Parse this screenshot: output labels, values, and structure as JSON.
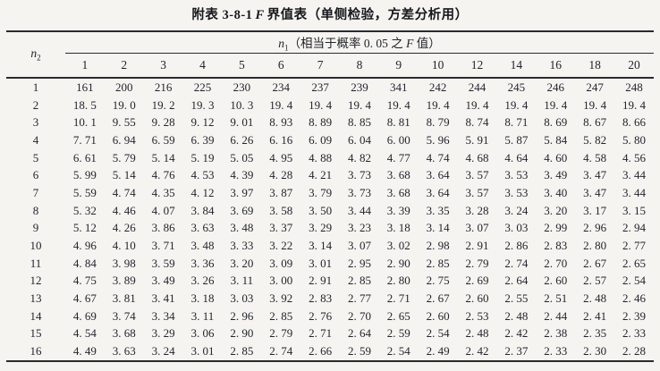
{
  "page": {
    "background": "#f5f4f0",
    "text_color": "#22242c",
    "rule_color": "#2a2b30"
  },
  "title": {
    "label_prefix": "附表 3-8-1",
    "stat_symbol": "F",
    "label_suffix": "界值表（单侧检验，方差分析用）"
  },
  "table": {
    "row_var": {
      "symbol": "n",
      "subscript": "2"
    },
    "col_group": {
      "symbol": "n",
      "subscript": "1",
      "desc_pre": "（相当于概率 0. 05 之 ",
      "desc_symbol": "F",
      "desc_post": " 值）"
    },
    "columns": [
      "1",
      "2",
      "3",
      "4",
      "5",
      "6",
      "7",
      "8",
      "9",
      "10",
      "12",
      "14",
      "16",
      "18",
      "20"
    ],
    "rows": [
      {
        "n2": "1",
        "values": [
          "161",
          "200",
          "216",
          "225",
          "230",
          "234",
          "237",
          "239",
          "341",
          "242",
          "244",
          "245",
          "246",
          "247",
          "248"
        ]
      },
      {
        "n2": "2",
        "values": [
          "18. 5",
          "19. 0",
          "19. 2",
          "19. 3",
          "10. 3",
          "19. 4",
          "19. 4",
          "19. 4",
          "19. 4",
          "19. 4",
          "19. 4",
          "19. 4",
          "19. 4",
          "19. 4",
          "19. 4"
        ]
      },
      {
        "n2": "3",
        "values": [
          "10. 1",
          "9. 55",
          "9. 28",
          "9. 12",
          "9. 01",
          "8. 93",
          "8. 89",
          "8. 85",
          "8. 81",
          "8. 79",
          "8. 74",
          "8. 71",
          "8. 69",
          "8. 67",
          "8. 66"
        ]
      },
      {
        "n2": "4",
        "values": [
          "7. 71",
          "6. 94",
          "6. 59",
          "6. 39",
          "6. 26",
          "6. 16",
          "6. 09",
          "6. 04",
          "6. 00",
          "5. 96",
          "5. 91",
          "5. 87",
          "5. 84",
          "5. 82",
          "5. 80"
        ]
      },
      {
        "n2": "5",
        "values": [
          "6. 61",
          "5. 79",
          "5. 14",
          "5. 19",
          "5. 05",
          "4. 95",
          "4. 88",
          "4. 82",
          "4. 77",
          "4. 74",
          "4. 68",
          "4. 64",
          "4. 60",
          "4. 58",
          "4. 56"
        ]
      },
      {
        "n2": "6",
        "values": [
          "5. 99",
          "5. 14",
          "4. 76",
          "4. 53",
          "4. 39",
          "4. 28",
          "4. 21",
          "3. 73",
          "3. 68",
          "3. 64",
          "3. 57",
          "3. 53",
          "3. 49",
          "3. 47",
          "3. 44"
        ]
      },
      {
        "n2": "7",
        "values": [
          "5. 59",
          "4. 74",
          "4. 35",
          "4. 12",
          "3. 97",
          "3. 87",
          "3. 79",
          "3. 73",
          "3. 68",
          "3. 64",
          "3. 57",
          "3. 53",
          "3. 40",
          "3. 47",
          "3. 44"
        ]
      },
      {
        "n2": "8",
        "values": [
          "5. 32",
          "4. 46",
          "4. 07",
          "3. 84",
          "3. 69",
          "3. 58",
          "3. 50",
          "3. 44",
          "3. 39",
          "3. 35",
          "3. 28",
          "3. 24",
          "3. 20",
          "3. 17",
          "3. 15"
        ]
      },
      {
        "n2": "9",
        "values": [
          "5. 12",
          "4. 26",
          "3. 86",
          "3. 63",
          "3. 48",
          "3. 37",
          "3. 29",
          "3. 23",
          "3. 18",
          "3. 14",
          "3. 07",
          "3. 03",
          "2. 99",
          "2. 96",
          "2. 94"
        ]
      },
      {
        "n2": "10",
        "values": [
          "4. 96",
          "4. 10",
          "3. 71",
          "3. 48",
          "3. 33",
          "3. 22",
          "3. 14",
          "3. 07",
          "3. 02",
          "2. 98",
          "2. 91",
          "2. 86",
          "2. 83",
          "2. 80",
          "2. 77"
        ]
      },
      {
        "n2": "11",
        "values": [
          "4. 84",
          "3. 98",
          "3. 59",
          "3. 36",
          "3. 20",
          "3. 09",
          "3. 01",
          "2. 95",
          "2. 90",
          "2. 85",
          "2. 79",
          "2. 74",
          "2. 70",
          "2. 67",
          "2. 65"
        ]
      },
      {
        "n2": "12",
        "values": [
          "4. 75",
          "3. 89",
          "3. 49",
          "3. 26",
          "3. 11",
          "3. 00",
          "2. 91",
          "2. 85",
          "2. 80",
          "2. 75",
          "2. 69",
          "2. 64",
          "2. 60",
          "2. 57",
          "2. 54"
        ]
      },
      {
        "n2": "13",
        "values": [
          "4. 67",
          "3. 81",
          "3. 41",
          "3. 18",
          "3. 03",
          "3. 92",
          "2. 83",
          "2. 77",
          "2. 71",
          "2. 67",
          "2. 60",
          "2. 55",
          "2. 51",
          "2. 48",
          "2. 46"
        ]
      },
      {
        "n2": "14",
        "values": [
          "4. 69",
          "3. 74",
          "3. 34",
          "3. 11",
          "2. 96",
          "2. 85",
          "2. 76",
          "2. 70",
          "2. 65",
          "2. 60",
          "2. 53",
          "2. 48",
          "2. 44",
          "2. 41",
          "2. 39"
        ]
      },
      {
        "n2": "15",
        "values": [
          "4. 54",
          "3. 68",
          "3. 29",
          "3. 06",
          "2. 90",
          "2. 79",
          "2. 71",
          "2. 64",
          "2. 59",
          "2. 54",
          "2. 48",
          "2. 42",
          "2. 38",
          "2. 35",
          "2. 33"
        ]
      },
      {
        "n2": "16",
        "values": [
          "4. 49",
          "3. 63",
          "3. 24",
          "3. 01",
          "2. 85",
          "2. 74",
          "2. 66",
          "2. 59",
          "2. 54",
          "2. 49",
          "2. 42",
          "2. 37",
          "2. 33",
          "2. 30",
          "2. 28"
        ]
      }
    ]
  }
}
